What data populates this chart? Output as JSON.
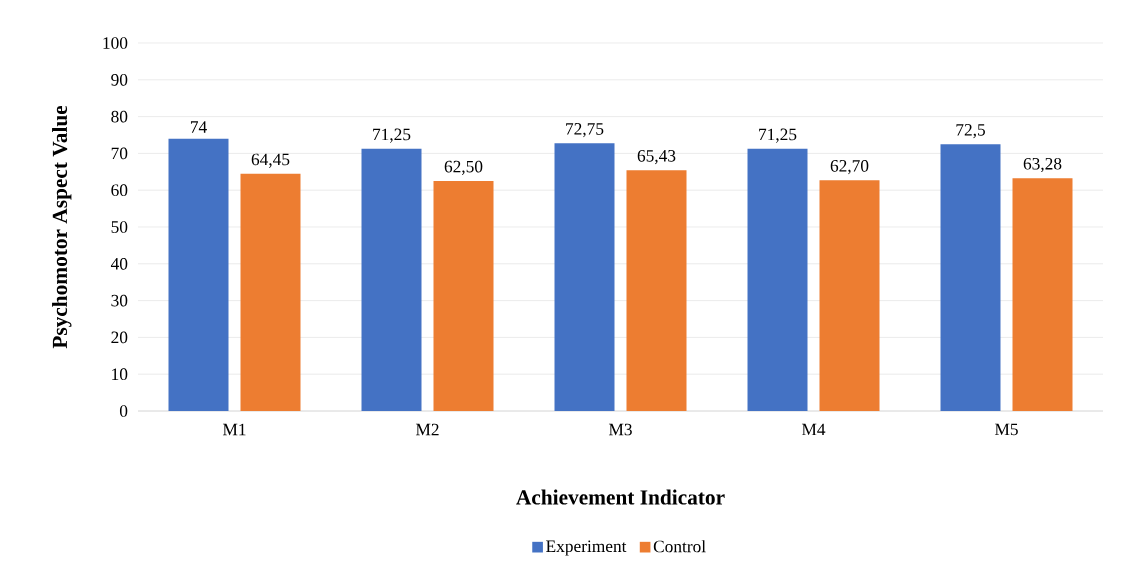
{
  "chart_data": {
    "type": "bar",
    "xlabel": "Achievement Indicator",
    "ylabel": "Psychomotor Aspect Value",
    "categories": [
      "M1",
      "M2",
      "M3",
      "M4",
      "M5"
    ],
    "series": [
      {
        "name": "Experiment",
        "color": "#4472c4",
        "values": [
          74,
          71.25,
          72.75,
          71.25,
          72.5
        ],
        "value_labels": [
          "74",
          "71,25",
          "72,75",
          "71,25",
          "72,5"
        ]
      },
      {
        "name": "Control",
        "color": "#ed7d31",
        "values": [
          64.45,
          62.5,
          65.43,
          62.7,
          63.28
        ],
        "value_labels": [
          "64,45",
          "62,50",
          "65,43",
          "62,70",
          "63,28"
        ]
      }
    ],
    "ylim": [
      0,
      100
    ],
    "yticks": [
      0,
      10,
      20,
      30,
      40,
      50,
      60,
      70,
      80,
      90,
      100
    ],
    "grid": "y",
    "legend": "bottom"
  }
}
